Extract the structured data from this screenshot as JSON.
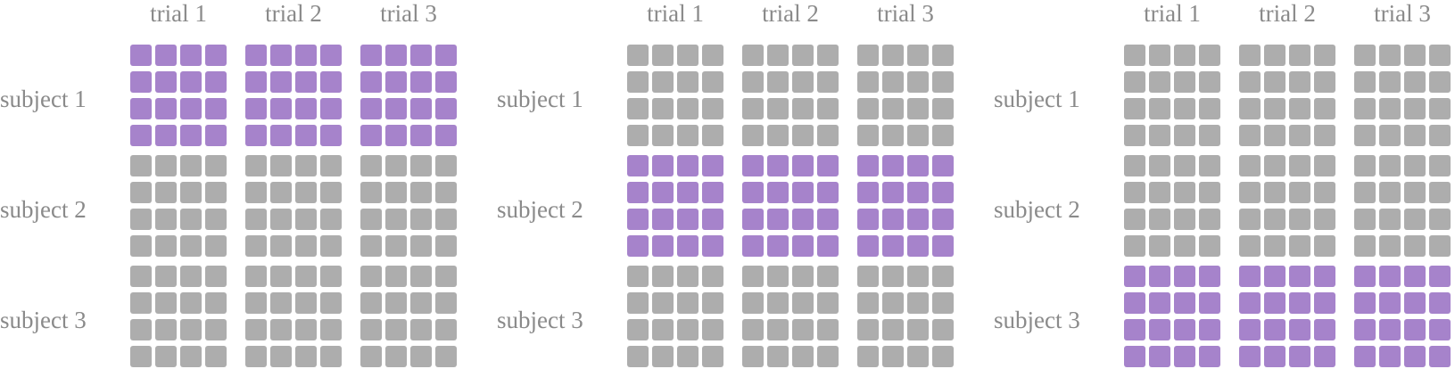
{
  "colors": {
    "label_text": "#8a8a8a",
    "cell_inactive": "#adadad",
    "cell_active": "#a683cb"
  },
  "trial_labels": [
    "trial 1",
    "trial 2",
    "trial 3"
  ],
  "subject_labels": [
    "subject 1",
    "subject 2",
    "subject 3"
  ],
  "cells_per_block": {
    "rows": 4,
    "cols": 4
  },
  "panels": [
    {
      "highlighted_subject": "subject 1"
    },
    {
      "highlighted_subject": "subject 2"
    },
    {
      "highlighted_subject": "subject 3"
    }
  ]
}
